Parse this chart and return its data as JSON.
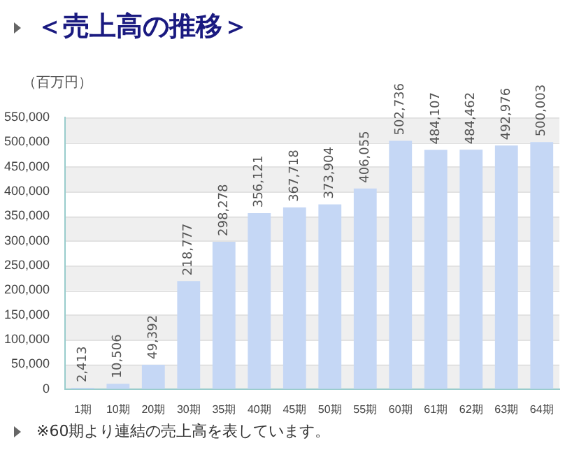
{
  "chart_data": {
    "type": "bar",
    "title": "＜売上高の推移＞",
    "ylabel": "（百万円）",
    "categories": [
      "1期",
      "10期",
      "20期",
      "30期",
      "35期",
      "40期",
      "45期",
      "50期",
      "55期",
      "60期",
      "61期",
      "62期",
      "63期",
      "64期"
    ],
    "values": [
      2413,
      10506,
      49392,
      218777,
      298278,
      356121,
      367718,
      373904,
      406055,
      502736,
      484107,
      484462,
      492976,
      500003
    ],
    "value_labels": [
      "2,413",
      "10,506",
      "49,392",
      "218,777",
      "298,278",
      "356,121",
      "367,718",
      "373,904",
      "406,055",
      "502,736",
      "484,107",
      "484,462",
      "492,976",
      "500,003"
    ],
    "color": "#c5d7f5",
    "ylim": [
      0,
      550000
    ],
    "yticks": [
      0,
      {
        "value": 50000,
        "label": "50,000"
      },
      {
        "value": 100000,
        "label": "100,000"
      },
      {
        "value": 150000,
        "label": "150,000"
      },
      {
        "value": 200000,
        "label": "200,000"
      },
      {
        "value": 250000,
        "label": "250,000"
      },
      {
        "value": 300000,
        "label": "300,000"
      },
      {
        "value": 350000,
        "label": "350,000"
      },
      {
        "value": 400000,
        "label": "400,000"
      },
      {
        "value": 450000,
        "label": "450,000"
      },
      {
        "value": 500000,
        "label": "500,000"
      },
      {
        "value": 550000,
        "label": "550,000"
      }
    ],
    "grid": "y",
    "annotations": [
      "※60期より連結の売上高を表しています。"
    ]
  }
}
